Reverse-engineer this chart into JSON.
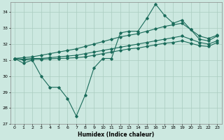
{
  "xlabel": "Humidex (Indice chaleur)",
  "xlim": [
    -0.5,
    23.5
  ],
  "ylim": [
    27,
    34.6
  ],
  "yticks": [
    27,
    28,
    29,
    30,
    31,
    32,
    33,
    34
  ],
  "xticks": [
    0,
    1,
    2,
    3,
    4,
    5,
    6,
    7,
    8,
    9,
    10,
    11,
    12,
    13,
    14,
    15,
    16,
    17,
    18,
    19,
    20,
    21,
    22,
    23
  ],
  "background_color": "#cce8e0",
  "grid_color": "#aaccbf",
  "line_color": "#1a6b5a",
  "line1_y": [
    31.1,
    30.8,
    31.0,
    30.0,
    29.3,
    29.3,
    28.6,
    27.5,
    28.8,
    30.5,
    31.1,
    31.1,
    32.7,
    32.8,
    32.8,
    33.6,
    34.5,
    33.8,
    33.3,
    33.5,
    32.9,
    32.3,
    32.2,
    32.5
  ],
  "line2_y": [
    31.1,
    31.15,
    31.2,
    31.3,
    31.4,
    31.5,
    31.6,
    31.7,
    31.85,
    32.0,
    32.15,
    32.3,
    32.45,
    32.55,
    32.65,
    32.8,
    32.95,
    33.1,
    33.2,
    33.3,
    32.9,
    32.5,
    32.35,
    32.55
  ],
  "line3_y": [
    31.1,
    31.05,
    31.1,
    31.1,
    31.15,
    31.2,
    31.25,
    31.3,
    31.4,
    31.5,
    31.6,
    31.7,
    31.8,
    31.9,
    32.0,
    32.1,
    32.2,
    32.3,
    32.4,
    32.5,
    32.3,
    32.1,
    32.0,
    32.2
  ],
  "line4_y": [
    31.1,
    31.0,
    31.05,
    31.05,
    31.08,
    31.1,
    31.12,
    31.15,
    31.2,
    31.3,
    31.4,
    31.5,
    31.6,
    31.7,
    31.75,
    31.85,
    31.95,
    32.05,
    32.1,
    32.2,
    32.05,
    31.9,
    31.85,
    32.1
  ],
  "marker": "D",
  "markersize": 1.8,
  "linewidth": 0.8
}
